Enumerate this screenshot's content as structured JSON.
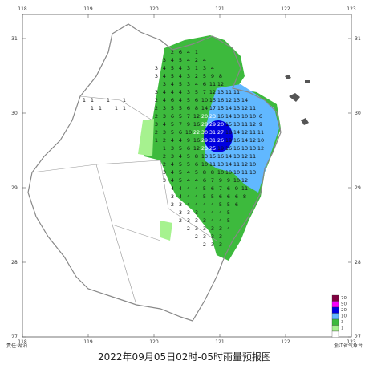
{
  "map": {
    "title": "2022年09月05日02时-05时雨量预报图",
    "footer_left": "责任:湖泊",
    "footer_right": "浙江省气象台",
    "lon_ticks": [
      118,
      119,
      120,
      121,
      122,
      123
    ],
    "lat_ticks": [
      31,
      30,
      29,
      28,
      27
    ],
    "legend": [
      {
        "label": "70",
        "color": "#800040"
      },
      {
        "label": "50",
        "color": "#fa00fa"
      },
      {
        "label": "20",
        "color": "#0000e0"
      },
      {
        "label": "10",
        "color": "#61b8ff"
      },
      {
        "label": "3",
        "color": "#3dba3d"
      },
      {
        "label": "1",
        "color": "#a6f28f"
      }
    ],
    "rain_grid": [
      [
        null,
        null,
        2,
        6,
        4,
        1,
        null,
        null,
        null,
        null,
        null,
        null,
        null,
        null,
        null
      ],
      [
        null,
        3,
        4,
        5,
        4,
        2,
        4,
        null,
        null,
        null,
        null,
        null,
        null,
        null,
        null
      ],
      [
        3,
        4,
        5,
        4,
        3,
        1,
        3,
        4,
        null,
        null,
        null,
        null,
        null,
        null,
        null
      ],
      [
        3,
        4,
        5,
        4,
        3,
        2,
        5,
        9,
        8,
        null,
        null,
        null,
        null,
        null,
        null
      ],
      [
        null,
        3,
        4,
        5,
        3,
        4,
        6,
        11,
        12,
        null,
        null,
        null,
        null,
        null,
        null
      ],
      [
        3,
        4,
        4,
        4,
        3,
        5,
        7,
        12,
        13,
        11,
        11,
        null,
        null,
        null,
        null
      ],
      [
        2,
        4,
        6,
        4,
        5,
        6,
        10,
        15,
        16,
        12,
        13,
        14,
        null,
        null,
        null
      ],
      [
        2,
        3,
        5,
        5,
        6,
        8,
        14,
        17,
        15,
        14,
        13,
        12,
        11,
        null,
        null
      ],
      [
        2,
        3,
        6,
        5,
        7,
        12,
        20,
        23,
        16,
        14,
        13,
        10,
        10,
        6,
        null
      ],
      [
        3,
        4,
        5,
        7,
        9,
        16,
        28,
        29,
        20,
        15,
        13,
        11,
        12,
        9,
        null
      ],
      [
        2,
        3,
        5,
        6,
        10,
        22,
        30,
        31,
        27,
        18,
        14,
        12,
        11,
        11,
        null
      ],
      [
        1,
        2,
        4,
        4,
        9,
        16,
        29,
        31,
        26,
        19,
        16,
        14,
        12,
        10,
        null
      ],
      [
        null,
        1,
        3,
        5,
        6,
        12,
        23,
        25,
        19,
        16,
        16,
        13,
        13,
        12,
        null
      ],
      [
        null,
        2,
        3,
        4,
        5,
        8,
        13,
        15,
        16,
        14,
        13,
        12,
        11,
        null,
        null
      ],
      [
        null,
        2,
        4,
        5,
        5,
        6,
        10,
        11,
        13,
        14,
        11,
        12,
        10,
        null,
        null
      ],
      [
        null,
        3,
        4,
        5,
        4,
        5,
        8,
        8,
        10,
        10,
        10,
        11,
        13,
        null,
        null
      ],
      [
        null,
        3,
        4,
        5,
        4,
        4,
        6,
        7,
        9,
        9,
        10,
        12,
        null,
        null,
        null
      ],
      [
        null,
        null,
        4,
        4,
        4,
        4,
        5,
        6,
        7,
        6,
        9,
        11,
        null,
        null,
        null
      ],
      [
        null,
        null,
        3,
        4,
        4,
        4,
        5,
        5,
        6,
        6,
        6,
        8,
        null,
        null,
        null
      ],
      [
        null,
        null,
        2,
        3,
        4,
        4,
        4,
        4,
        5,
        5,
        6,
        null,
        null,
        null,
        null
      ],
      [
        null,
        null,
        null,
        3,
        3,
        3,
        4,
        4,
        4,
        5,
        null,
        null,
        null,
        null,
        null
      ],
      [
        null,
        null,
        null,
        2,
        3,
        3,
        3,
        4,
        4,
        5,
        null,
        null,
        null,
        null,
        null
      ],
      [
        null,
        null,
        null,
        null,
        2,
        3,
        3,
        3,
        3,
        4,
        null,
        null,
        null,
        null,
        null
      ],
      [
        null,
        null,
        null,
        null,
        null,
        2,
        3,
        3,
        3,
        null,
        null,
        null,
        null,
        null,
        null
      ],
      [
        null,
        null,
        null,
        null,
        null,
        null,
        2,
        3,
        3,
        null,
        null,
        null,
        null,
        null,
        null
      ]
    ],
    "west_grid": [
      [
        1,
        1,
        null,
        1,
        null,
        1,
        null,
        null
      ],
      [
        null,
        1,
        1,
        null,
        1,
        1,
        null,
        null
      ]
    ]
  }
}
